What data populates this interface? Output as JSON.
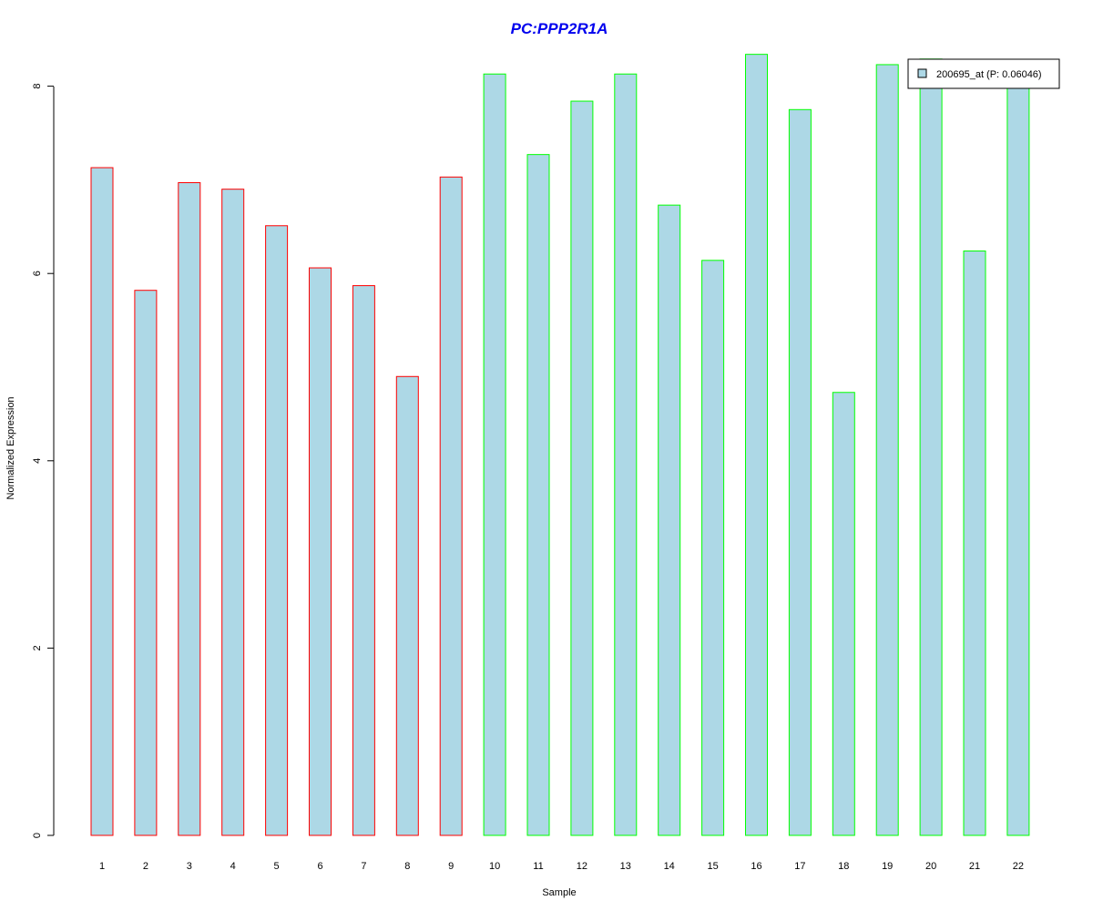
{
  "chart_data": {
    "type": "bar",
    "title": "PC:PPP2R1A",
    "xlabel": "Sample",
    "ylabel": "Normalized Expression",
    "categories": [
      "1",
      "2",
      "3",
      "4",
      "5",
      "6",
      "7",
      "8",
      "9",
      "10",
      "11",
      "12",
      "13",
      "14",
      "15",
      "16",
      "17",
      "18",
      "19",
      "20",
      "21",
      "22"
    ],
    "series": [
      {
        "name": "200695_at (P: 0.06046)",
        "values": [
          7.13,
          5.82,
          6.97,
          6.9,
          6.51,
          6.06,
          5.87,
          4.9,
          7.03,
          8.13,
          7.27,
          7.84,
          8.13,
          6.73,
          6.14,
          8.34,
          7.75,
          4.73,
          8.23,
          8.29,
          6.24,
          8.1
        ]
      }
    ],
    "yticks": [
      "0",
      "2",
      "4",
      "6",
      "8"
    ],
    "ylim": [
      0,
      8.4
    ],
    "legend_position": "top-right",
    "grid": false,
    "colors": {
      "bar_fill": "#add8e6",
      "group_a_border": "#ff0000",
      "group_b_border": "#00ff00",
      "title": "#0000ee"
    },
    "border_groups": [
      "a",
      "a",
      "a",
      "a",
      "a",
      "a",
      "a",
      "a",
      "a",
      "b",
      "b",
      "b",
      "b",
      "b",
      "b",
      "b",
      "b",
      "b",
      "b",
      "b",
      "b",
      "b"
    ]
  }
}
